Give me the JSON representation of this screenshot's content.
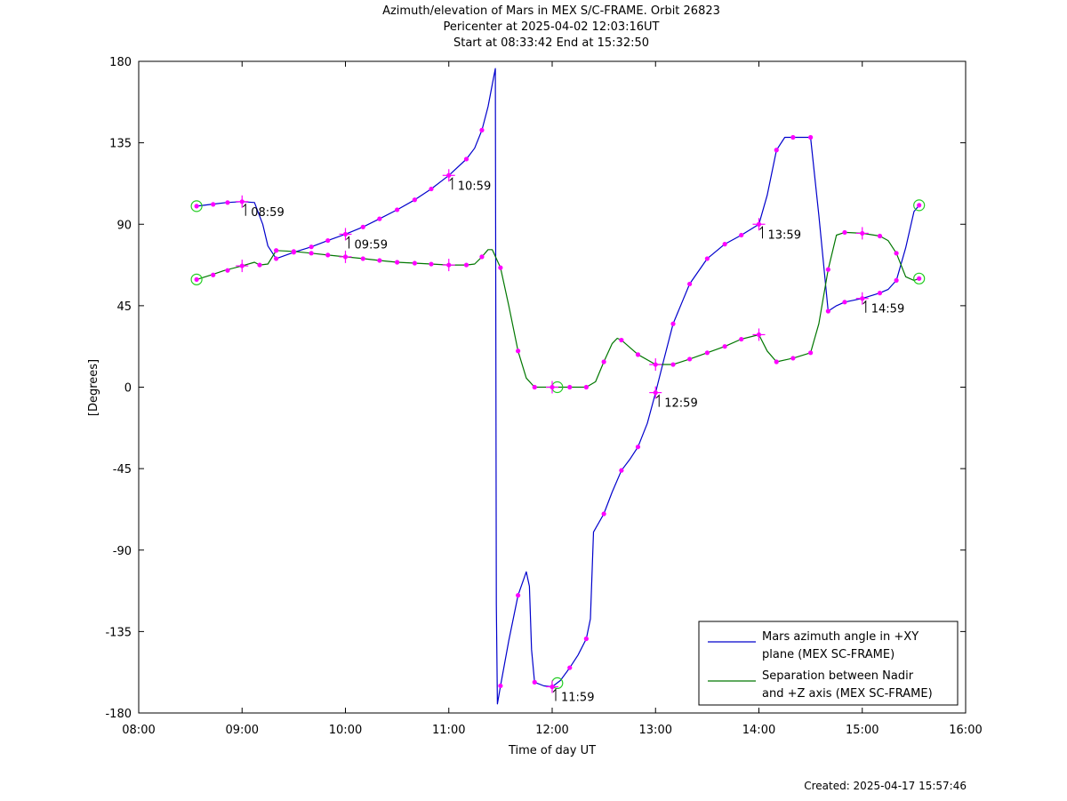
{
  "title_lines": [
    "Azimuth/elevation of Mars in MEX S/C-FRAME.  Orbit 26823",
    "Pericenter at 2025-04-02 12:03:16UT",
    "Start at 08:33:42 End at 15:32:50"
  ],
  "created": "Created: 2025-04-17 15:57:46",
  "chart_data": {
    "type": "line",
    "xlabel": "Time of day UT",
    "ylabel": "[Degrees]",
    "x_unit": "hours of day UT",
    "xlim": [
      8,
      16
    ],
    "ylim": [
      -180,
      180
    ],
    "x_ticks": [
      8,
      9,
      10,
      11,
      12,
      13,
      14,
      15,
      16
    ],
    "x_tick_labels": [
      "08:00",
      "09:00",
      "10:00",
      "11:00",
      "12:00",
      "13:00",
      "14:00",
      "15:00",
      "16:00"
    ],
    "y_ticks": [
      180,
      135,
      90,
      45,
      0,
      -45,
      -90,
      -135,
      -180
    ],
    "y_tick_labels": [
      "180",
      "135",
      "90",
      "45",
      "0",
      "-45",
      "-90",
      "-135",
      "-180"
    ],
    "grid": false,
    "legend_position": "bottom-right",
    "series": [
      {
        "name": "Mars azimuth angle in +XY plane (MEX SC-FRAME)",
        "legend_lines": [
          "Mars azimuth angle in +XY",
          "plane (MEX SC-FRAME)"
        ],
        "color": "#0000cc",
        "points": [
          [
            8.56,
            100
          ],
          [
            8.7,
            101
          ],
          [
            8.85,
            102
          ],
          [
            9.0,
            102.5
          ],
          [
            9.12,
            102
          ],
          [
            9.2,
            90
          ],
          [
            9.25,
            78
          ],
          [
            9.33,
            71
          ],
          [
            9.5,
            74.5
          ],
          [
            9.67,
            77.5
          ],
          [
            9.83,
            81
          ],
          [
            10.0,
            84.5
          ],
          [
            10.17,
            88.5
          ],
          [
            10.33,
            93
          ],
          [
            10.5,
            98
          ],
          [
            10.67,
            103.5
          ],
          [
            10.83,
            109.5
          ],
          [
            11.0,
            117
          ],
          [
            11.17,
            126
          ],
          [
            11.25,
            132
          ],
          [
            11.32,
            142
          ],
          [
            11.38,
            155
          ],
          [
            11.43,
            170
          ],
          [
            11.45,
            176
          ],
          [
            11.46,
            -120
          ],
          [
            11.47,
            -175
          ],
          [
            11.5,
            -165
          ],
          [
            11.58,
            -140
          ],
          [
            11.67,
            -115
          ],
          [
            11.75,
            -102
          ],
          [
            11.78,
            -110
          ],
          [
            11.8,
            -145
          ],
          [
            11.83,
            -163
          ],
          [
            11.92,
            -165
          ],
          [
            12.0,
            -165.5
          ],
          [
            12.08,
            -162
          ],
          [
            12.17,
            -155
          ],
          [
            12.25,
            -148
          ],
          [
            12.33,
            -139
          ],
          [
            12.37,
            -128
          ],
          [
            12.4,
            -80
          ],
          [
            12.5,
            -70
          ],
          [
            12.58,
            -58
          ],
          [
            12.67,
            -46
          ],
          [
            12.75,
            -40
          ],
          [
            12.83,
            -33
          ],
          [
            12.92,
            -20
          ],
          [
            13.0,
            -3
          ],
          [
            13.08,
            15
          ],
          [
            13.17,
            35
          ],
          [
            13.25,
            46
          ],
          [
            13.33,
            57
          ],
          [
            13.5,
            71
          ],
          [
            13.67,
            79
          ],
          [
            13.83,
            84
          ],
          [
            14.0,
            90
          ],
          [
            14.08,
            106
          ],
          [
            14.17,
            131
          ],
          [
            14.25,
            138
          ],
          [
            14.33,
            138
          ],
          [
            14.5,
            138
          ],
          [
            14.58,
            95
          ],
          [
            14.67,
            42
          ],
          [
            14.75,
            45
          ],
          [
            14.83,
            47
          ],
          [
            15.0,
            49
          ],
          [
            15.17,
            52
          ],
          [
            15.25,
            54
          ],
          [
            15.33,
            59
          ],
          [
            15.42,
            77
          ],
          [
            15.5,
            97
          ],
          [
            15.55,
            100.5
          ]
        ],
        "markers": [
          [
            8.56,
            100
          ],
          [
            8.72,
            101
          ],
          [
            8.86,
            102
          ],
          [
            9.0,
            102.5
          ],
          [
            9.33,
            71
          ],
          [
            9.5,
            74.5
          ],
          [
            9.67,
            77.5
          ],
          [
            9.83,
            81
          ],
          [
            10.0,
            84.5
          ],
          [
            10.17,
            88.5
          ],
          [
            10.33,
            93
          ],
          [
            10.5,
            98
          ],
          [
            10.67,
            103.5
          ],
          [
            10.83,
            109.5
          ],
          [
            11.0,
            117
          ],
          [
            11.17,
            126
          ],
          [
            11.32,
            142
          ],
          [
            11.5,
            -165
          ],
          [
            11.67,
            -115
          ],
          [
            11.83,
            -163
          ],
          [
            12.0,
            -165.5
          ],
          [
            12.17,
            -155
          ],
          [
            12.33,
            -139
          ],
          [
            12.5,
            -70
          ],
          [
            12.67,
            -46
          ],
          [
            12.83,
            -33
          ],
          [
            13.0,
            -3
          ],
          [
            13.17,
            35
          ],
          [
            13.33,
            57
          ],
          [
            13.5,
            71
          ],
          [
            13.67,
            79
          ],
          [
            13.83,
            84
          ],
          [
            14.0,
            90
          ],
          [
            14.17,
            131
          ],
          [
            14.33,
            138
          ],
          [
            14.5,
            138
          ],
          [
            14.67,
            42
          ],
          [
            14.83,
            47
          ],
          [
            15.0,
            49
          ],
          [
            15.17,
            52
          ],
          [
            15.33,
            59
          ],
          [
            15.55,
            100.5
          ]
        ],
        "hour_marks": [
          [
            9.0,
            102.5
          ],
          [
            10.0,
            84.5
          ],
          [
            11.0,
            117
          ],
          [
            12.0,
            -165.5
          ],
          [
            13.0,
            -3
          ],
          [
            14.0,
            90
          ],
          [
            15.0,
            49
          ]
        ],
        "time_labels": [
          {
            "x": 9.0,
            "y": 102.5,
            "text": "08:59"
          },
          {
            "x": 10.0,
            "y": 84.5,
            "text": "09:59"
          },
          {
            "x": 11.0,
            "y": 117,
            "text": "10:59"
          },
          {
            "x": 12.0,
            "y": -165.5,
            "text": "11:59"
          },
          {
            "x": 13.0,
            "y": -3,
            "text": "12:59"
          },
          {
            "x": 14.0,
            "y": 90,
            "text": "13:59"
          },
          {
            "x": 15.0,
            "y": 49,
            "text": "14:59"
          }
        ],
        "circles": [
          [
            8.56,
            100
          ],
          [
            15.55,
            100.5
          ],
          [
            12.05,
            -163.5
          ]
        ]
      },
      {
        "name": "Separation between Nadir and +Z axis (MEX SC-FRAME)",
        "legend_lines": [
          "Separation between Nadir",
          "and +Z axis (MEX SC-FRAME)"
        ],
        "color": "#007700",
        "points": [
          [
            8.56,
            59.5
          ],
          [
            8.7,
            62
          ],
          [
            8.83,
            64.5
          ],
          [
            9.0,
            67
          ],
          [
            9.12,
            69
          ],
          [
            9.17,
            67.5
          ],
          [
            9.25,
            68
          ],
          [
            9.33,
            75.5
          ],
          [
            9.5,
            75
          ],
          [
            9.67,
            74
          ],
          [
            9.83,
            73
          ],
          [
            10.0,
            72
          ],
          [
            10.17,
            71
          ],
          [
            10.33,
            70
          ],
          [
            10.5,
            69
          ],
          [
            10.67,
            68.5
          ],
          [
            10.83,
            68
          ],
          [
            11.0,
            67.5
          ],
          [
            11.17,
            67.5
          ],
          [
            11.25,
            68
          ],
          [
            11.32,
            72
          ],
          [
            11.38,
            76
          ],
          [
            11.42,
            76
          ],
          [
            11.5,
            66
          ],
          [
            11.58,
            45
          ],
          [
            11.67,
            20
          ],
          [
            11.75,
            5
          ],
          [
            11.83,
            0
          ],
          [
            12.0,
            0
          ],
          [
            12.17,
            0
          ],
          [
            12.33,
            0
          ],
          [
            12.42,
            3
          ],
          [
            12.5,
            14
          ],
          [
            12.58,
            24
          ],
          [
            12.63,
            27
          ],
          [
            12.67,
            26
          ],
          [
            12.83,
            18
          ],
          [
            13.0,
            12.5
          ],
          [
            13.17,
            12.5
          ],
          [
            13.33,
            15.5
          ],
          [
            13.5,
            19
          ],
          [
            13.67,
            22.5
          ],
          [
            13.83,
            26.5
          ],
          [
            14.0,
            29
          ],
          [
            14.08,
            20
          ],
          [
            14.17,
            14
          ],
          [
            14.33,
            16
          ],
          [
            14.5,
            19
          ],
          [
            14.58,
            35
          ],
          [
            14.67,
            65
          ],
          [
            14.75,
            84
          ],
          [
            14.83,
            85.5
          ],
          [
            15.0,
            85
          ],
          [
            15.17,
            83.5
          ],
          [
            15.25,
            81
          ],
          [
            15.33,
            74
          ],
          [
            15.42,
            61
          ],
          [
            15.5,
            59
          ],
          [
            15.55,
            60
          ]
        ],
        "markers": [
          [
            8.56,
            59.5
          ],
          [
            8.72,
            62
          ],
          [
            8.86,
            64.5
          ],
          [
            9.0,
            67
          ],
          [
            9.17,
            67.5
          ],
          [
            9.33,
            75.5
          ],
          [
            9.5,
            75
          ],
          [
            9.67,
            74
          ],
          [
            9.83,
            73
          ],
          [
            10.0,
            72
          ],
          [
            10.17,
            71
          ],
          [
            10.33,
            70
          ],
          [
            10.5,
            69
          ],
          [
            10.67,
            68.5
          ],
          [
            10.83,
            68
          ],
          [
            11.0,
            67.5
          ],
          [
            11.17,
            67.5
          ],
          [
            11.32,
            72
          ],
          [
            11.5,
            66
          ],
          [
            11.67,
            20
          ],
          [
            11.83,
            0
          ],
          [
            12.0,
            0
          ],
          [
            12.17,
            0
          ],
          [
            12.33,
            0
          ],
          [
            12.5,
            14
          ],
          [
            12.67,
            26
          ],
          [
            12.83,
            18
          ],
          [
            13.0,
            12.5
          ],
          [
            13.17,
            12.5
          ],
          [
            13.33,
            15.5
          ],
          [
            13.5,
            19
          ],
          [
            13.67,
            22.5
          ],
          [
            13.83,
            26.5
          ],
          [
            14.0,
            29
          ],
          [
            14.17,
            14
          ],
          [
            14.33,
            16
          ],
          [
            14.5,
            19
          ],
          [
            14.67,
            65
          ],
          [
            14.83,
            85.5
          ],
          [
            15.0,
            85
          ],
          [
            15.17,
            83.5
          ],
          [
            15.33,
            74
          ],
          [
            15.55,
            60
          ]
        ],
        "hour_marks": [
          [
            9.0,
            67
          ],
          [
            10.0,
            72
          ],
          [
            11.0,
            67.5
          ],
          [
            12.0,
            0
          ],
          [
            13.0,
            12.5
          ],
          [
            14.0,
            29
          ],
          [
            15.0,
            85
          ]
        ],
        "circles": [
          [
            8.56,
            59.5
          ],
          [
            15.55,
            60
          ],
          [
            12.05,
            0
          ]
        ]
      }
    ]
  }
}
